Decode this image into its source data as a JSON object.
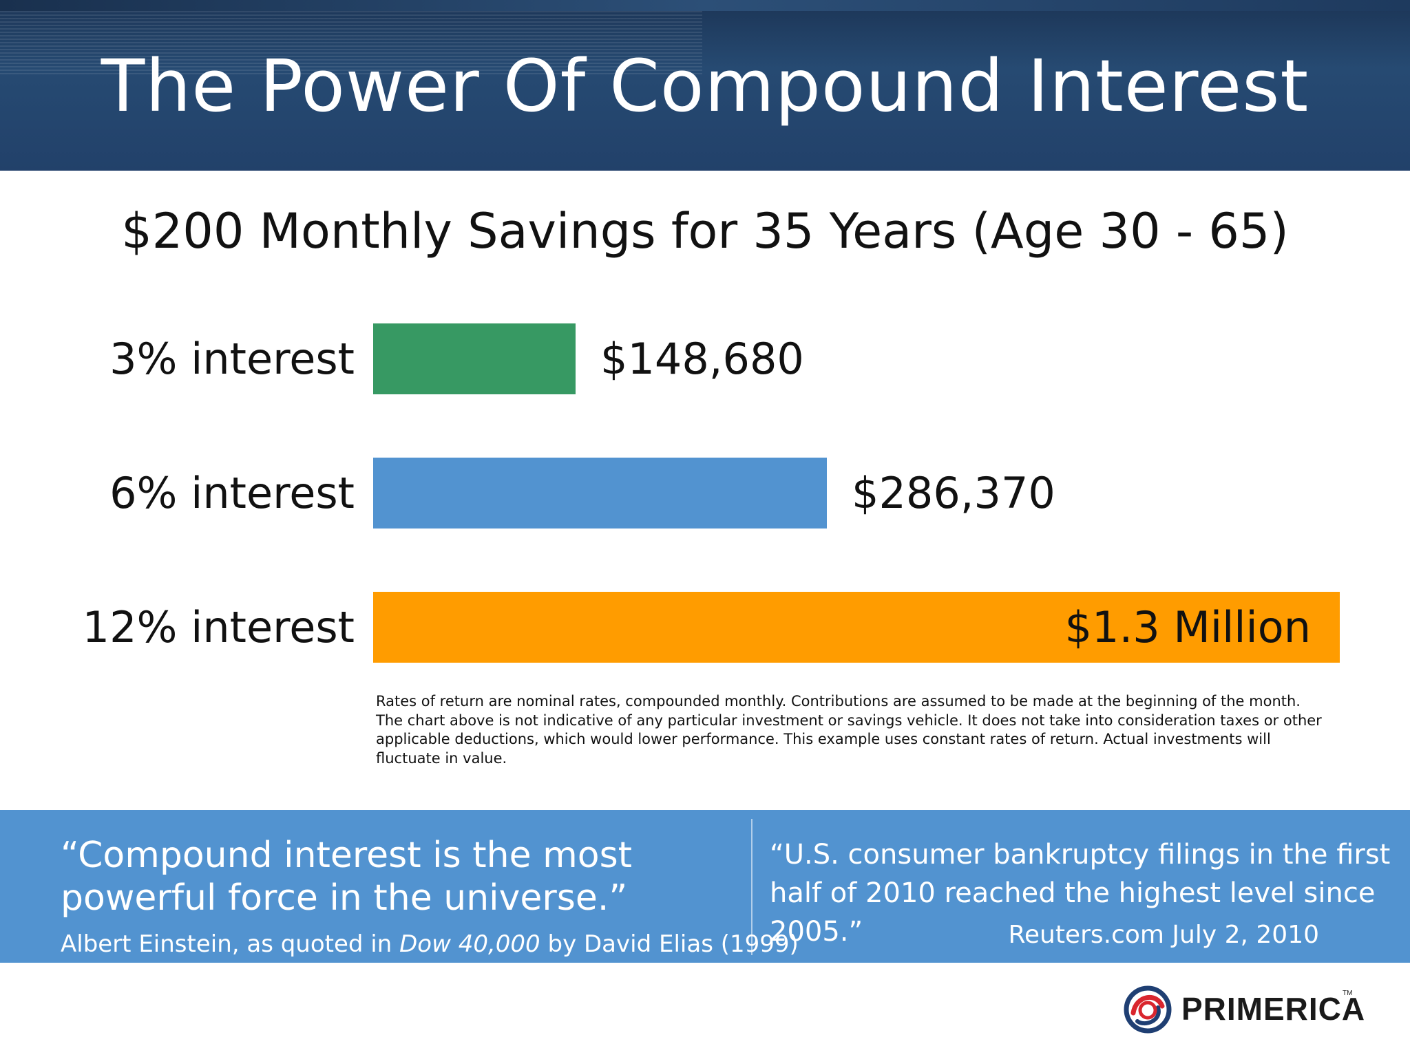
{
  "header": {
    "title": "The Power Of Compound Interest"
  },
  "chart_data": {
    "type": "bar",
    "orientation": "horizontal",
    "title": "$200 Monthly Savings for 35 Years (Age 30 - 65)",
    "categories": [
      "3% interest",
      "6% interest",
      "12% interest"
    ],
    "values": [
      148680,
      286370,
      1300000
    ],
    "value_labels": [
      "$148,680",
      "$286,370",
      "$1.3 Million"
    ],
    "colors": [
      "#379963",
      "#5293d0",
      "#ff9c00"
    ],
    "xlabel": "",
    "ylabel": "",
    "grid": false,
    "legend": "none"
  },
  "disclaimer": "Rates of return are nominal rates, compounded monthly. Contributions are assumed to be made at the beginning of the month. The chart above is not indicative of any particular investment or savings vehicle. It does not take into consideration taxes or other applicable deductions, which would lower performance. This example uses constant rates of return. Actual investments will fluctuate in value.",
  "quotes": {
    "left": {
      "text": "“Compound interest is the most powerful force in the universe.”",
      "attribution_prefix": "Albert Einstein, as quoted in ",
      "attribution_title": "Dow 40,000",
      "attribution_suffix": " by David Elias (1999)"
    },
    "right": {
      "text": "“U.S. consumer bankruptcy filings in the first half of 2010 reached the highest level since 2005.”",
      "attribution": "Reuters.com July 2, 2010"
    }
  },
  "logo": {
    "name": "PRIMERICA",
    "trademark": "TM",
    "icon": "primerica-knot-icon"
  },
  "colors": {
    "header_bg": "#22416a",
    "quote_band": "#5293d0"
  }
}
